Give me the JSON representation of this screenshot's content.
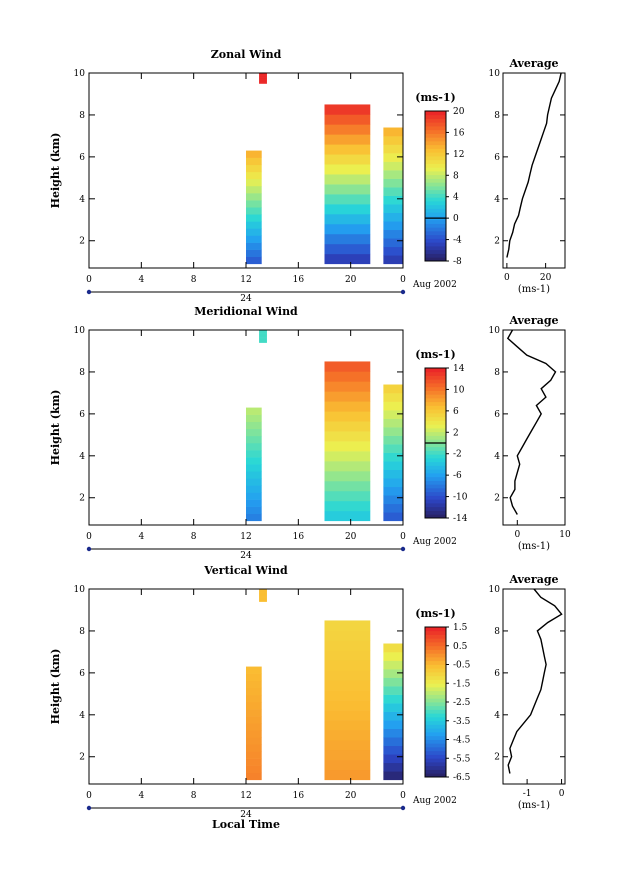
{
  "chart_data": [
    {
      "type": "heatmap",
      "title": "Zonal Wind",
      "ylabel": "Height (km)",
      "xlabel": "",
      "xlim": [
        0,
        24
      ],
      "ylim": [
        0.7,
        10
      ],
      "xticks": [
        "0",
        "4",
        "8",
        "12",
        "16",
        "20",
        "0"
      ],
      "yticks": [
        "2",
        "4",
        "6",
        "8",
        "10"
      ],
      "date_day": "24",
      "date_label": "Aug 2002",
      "colorbar": {
        "unit": "(ms-1)",
        "min": -8,
        "max": 20,
        "zero_line": 0,
        "ticks": [
          "-8",
          "-4",
          "0",
          "4",
          "8",
          "12",
          "16",
          "20"
        ]
      },
      "segments": [
        {
          "t_start": 12.0,
          "t_end": 13.2,
          "h_top": 6.3,
          "value_low": -4,
          "value_high": 14
        },
        {
          "t_start": 18.0,
          "t_end": 21.5,
          "h_top": 8.5,
          "value_low": -6,
          "value_high": 20
        },
        {
          "t_start": 22.5,
          "t_end": 24.0,
          "h_top": 7.4,
          "value_low": -6,
          "value_high": 14
        },
        {
          "t_start": 13.0,
          "t_end": 13.6,
          "h_bottom": 9.5,
          "h_top": 10.0,
          "value_low": 20,
          "value_high": 20
        }
      ],
      "average_profile": {
        "title": "Average",
        "xticks": [
          "0",
          "20"
        ],
        "xlim": [
          -2,
          30
        ],
        "unit": "(ms-1)",
        "height": [
          1.2,
          1.6,
          2.0,
          2.4,
          2.8,
          3.2,
          3.6,
          4.0,
          4.4,
          4.8,
          5.2,
          5.6,
          6.0,
          6.4,
          6.8,
          7.2,
          7.6,
          8.0,
          8.4,
          8.8,
          9.2,
          9.6,
          10.0
        ],
        "values": [
          0,
          1,
          1.5,
          3,
          4,
          6,
          7,
          8,
          9.5,
          11,
          12,
          13,
          14.5,
          16,
          17.5,
          19,
          20.5,
          21,
          22,
          23,
          25,
          27,
          28
        ]
      }
    },
    {
      "type": "heatmap",
      "title": "Meridional Wind",
      "ylabel": "Height (km)",
      "xlabel": "",
      "xlim": [
        0,
        24
      ],
      "ylim": [
        0.7,
        10
      ],
      "xticks": [
        "0",
        "4",
        "8",
        "12",
        "16",
        "20",
        "0"
      ],
      "yticks": [
        "2",
        "4",
        "6",
        "8",
        "10"
      ],
      "date_day": "24",
      "date_label": "Aug 2002",
      "colorbar": {
        "unit": "(ms-1)",
        "min": -14,
        "max": 14,
        "zero_line": 0,
        "ticks": [
          "-14",
          "-10",
          "-6",
          "-2",
          "2",
          "6",
          "10",
          "14"
        ]
      },
      "segments": [
        {
          "t_start": 12.0,
          "t_end": 13.2,
          "h_top": 6.3,
          "value_low": -8,
          "value_high": 2
        },
        {
          "t_start": 18.0,
          "t_end": 21.5,
          "h_top": 8.5,
          "value_low": -4,
          "value_high": 12
        },
        {
          "t_start": 22.5,
          "t_end": 24.0,
          "h_top": 7.4,
          "value_low": -10,
          "value_high": 6
        },
        {
          "t_start": 13.0,
          "t_end": 13.6,
          "h_bottom": 9.4,
          "h_top": 10.0,
          "value_low": -2,
          "value_high": -2
        }
      ],
      "average_profile": {
        "title": "Average",
        "xticks": [
          "0",
          "10"
        ],
        "xlim": [
          -3,
          10
        ],
        "unit": "(ms-1)",
        "height": [
          1.2,
          1.6,
          2.0,
          2.4,
          2.8,
          3.2,
          3.6,
          4.0,
          4.4,
          4.8,
          5.2,
          5.6,
          6.0,
          6.4,
          6.8,
          7.2,
          7.6,
          8.0,
          8.4,
          8.8,
          9.2,
          9.6,
          10.0
        ],
        "values": [
          0,
          -1,
          -1.5,
          -0.5,
          -0.5,
          0,
          0.5,
          0,
          1,
          2,
          3,
          4,
          5,
          4,
          6,
          5,
          7,
          8,
          6,
          2,
          0,
          -2,
          -1
        ]
      }
    },
    {
      "type": "heatmap",
      "title": "Vertical Wind",
      "ylabel": "Height (km)",
      "xlabel": "Local Time",
      "xlim": [
        0,
        24
      ],
      "ylim": [
        0.7,
        10
      ],
      "xticks": [
        "0",
        "4",
        "8",
        "12",
        "16",
        "20",
        "0"
      ],
      "yticks": [
        "2",
        "4",
        "6",
        "8",
        "10"
      ],
      "date_day": "24",
      "date_label": "Aug 2002",
      "colorbar": {
        "unit": "(ms-1)",
        "min": -6.5,
        "max": 1.5,
        "zero_line": null,
        "ticks": [
          "-6.5",
          "-5.5",
          "-4.5",
          "-3.5",
          "-2.5",
          "-1.5",
          "-0.5",
          "0.5",
          "1.5"
        ]
      },
      "segments": [
        {
          "t_start": 12.0,
          "t_end": 13.2,
          "h_top": 6.3,
          "value_low": 0.3,
          "value_high": -0.5
        },
        {
          "t_start": 18.0,
          "t_end": 21.5,
          "h_top": 8.5,
          "value_low": 0.0,
          "value_high": -1.0
        },
        {
          "t_start": 22.5,
          "t_end": 24.0,
          "h_top": 7.4,
          "value_low": -6.5,
          "value_high": -1.0
        },
        {
          "t_start": 13.0,
          "t_end": 13.6,
          "h_bottom": 9.4,
          "h_top": 10.0,
          "value_low": -0.5,
          "value_high": -0.5
        }
      ],
      "average_profile": {
        "title": "Average",
        "xticks": [
          "-1",
          "0"
        ],
        "xlim": [
          -1.7,
          0.1
        ],
        "unit": "(ms-1)",
        "height": [
          1.2,
          1.6,
          2.0,
          2.4,
          2.8,
          3.2,
          3.6,
          4.0,
          4.4,
          4.8,
          5.2,
          5.6,
          6.0,
          6.4,
          6.8,
          7.2,
          7.6,
          8.0,
          8.4,
          8.8,
          9.2,
          9.6,
          10.0
        ],
        "values": [
          -1.5,
          -1.55,
          -1.45,
          -1.5,
          -1.4,
          -1.3,
          -1.1,
          -0.9,
          -0.8,
          -0.7,
          -0.6,
          -0.55,
          -0.5,
          -0.45,
          -0.5,
          -0.55,
          -0.6,
          -0.7,
          -0.4,
          0.0,
          -0.2,
          -0.6,
          -0.8
        ]
      }
    }
  ]
}
